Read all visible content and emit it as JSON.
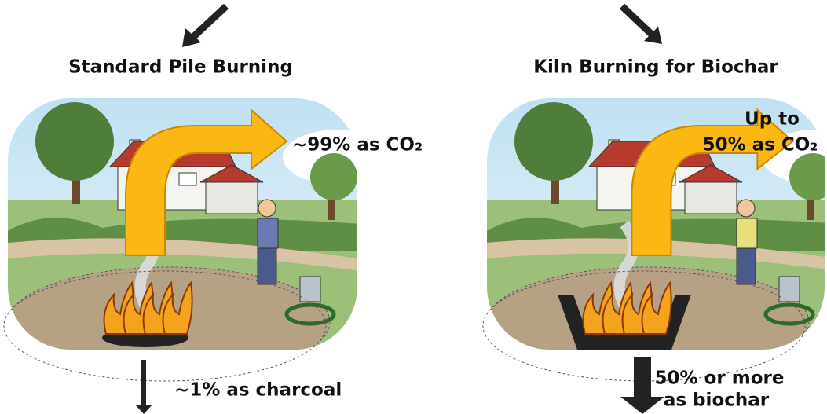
{
  "panels": [
    {
      "title": "Standard Pile Burning",
      "emission_label": [
        "~99% as CO₂"
      ],
      "residue_label": [
        "~1% as charcoal"
      ]
    },
    {
      "title": "Kiln Burning for Biochar",
      "emission_label": [
        "Up to",
        "50% as CO₂"
      ],
      "residue_label": [
        "50% or more",
        "as biochar"
      ]
    }
  ]
}
